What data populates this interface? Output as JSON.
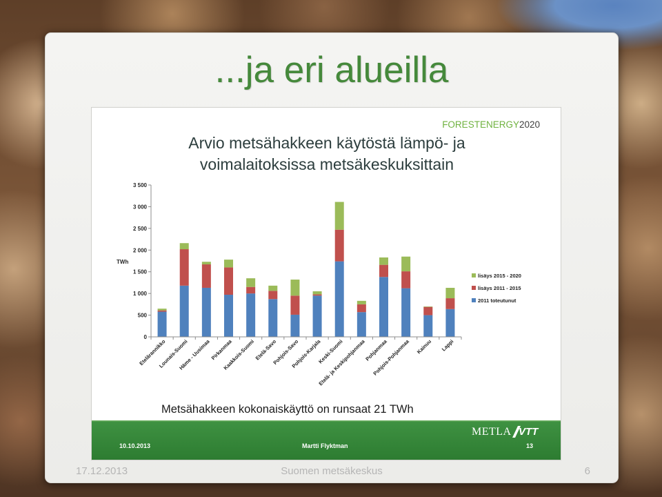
{
  "slide": {
    "title": "...ja eri alueilla",
    "footer": {
      "date": "17.12.2013",
      "organization": "Suomen metsäkeskus",
      "page_number": "6"
    }
  },
  "embedded_slide": {
    "logo": {
      "text_green": "FORESTENERGY",
      "text_dark": "2020"
    },
    "summary": "Metsähakkeen kokonaiskäyttö on runsaat 21 TWh",
    "footer": {
      "date": "10.10.2013",
      "author": "Martti Flyktman",
      "page_number": "13",
      "logo_metla": "METLA",
      "logo_vtt": "VTT"
    }
  },
  "colors": {
    "title_green": "#45893b",
    "chart_title": "#2c3d3d",
    "logo_green": "#6fb23f",
    "logo_dark": "#404040",
    "footer_band_green": "#37893b",
    "footer_text": "#b5b5b5"
  },
  "chart_data": {
    "type": "bar",
    "stacked": true,
    "title_lines": [
      "Arvio metsähakkeen käytöstä lämpö- ja",
      "voimalaitoksissa metsäkeskuksittain"
    ],
    "xlabel": "",
    "ylabel": "TWh",
    "ylim": [
      0,
      3500
    ],
    "yticks": [
      0,
      500,
      1000,
      1500,
      2000,
      2500,
      3000,
      3500
    ],
    "ytick_labels": [
      "0",
      "500",
      "1 000",
      "1 500",
      "2 000",
      "2 500",
      "3 000",
      "3 500"
    ],
    "categories": [
      "Etelärannikko",
      "Lounais-Suomi",
      "Häme - Uusimaa",
      "Pirkanmaa",
      "Kaakkois-Suomi",
      "Etelä-Savo",
      "Pohjois-Savo",
      "Pohjois-Karjala",
      "Keski-Suomi",
      "Etelä- ja Keskipohjanmaa",
      "Pohjanmaa",
      "Pohjois-Pohjanmaa",
      "Kainuu",
      "Lappi"
    ],
    "series": [
      {
        "name": "2011 toteutunut",
        "color": "#4f81bd",
        "values": [
          580,
          1180,
          1130,
          970,
          1000,
          870,
          510,
          950,
          1740,
          570,
          1380,
          1120,
          500,
          640
        ]
      },
      {
        "name": "lisäys 2011 - 2015",
        "color": "#c0504d",
        "values": [
          30,
          840,
          540,
          630,
          150,
          190,
          440,
          30,
          730,
          180,
          280,
          390,
          190,
          250
        ]
      },
      {
        "name": "lisäys 2015 - 2020",
        "color": "#9bbb59",
        "values": [
          40,
          140,
          60,
          180,
          200,
          120,
          370,
          70,
          640,
          80,
          170,
          340,
          10,
          240
        ]
      }
    ],
    "legend_position": "right",
    "grid": false
  }
}
